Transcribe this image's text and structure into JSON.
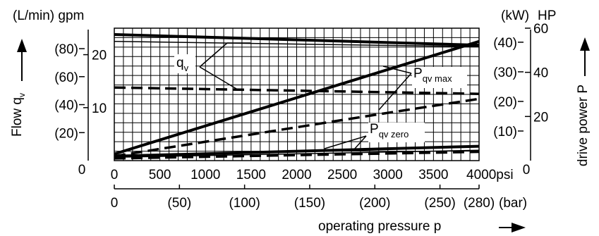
{
  "chart_data": {
    "type": "line",
    "x_psi": {
      "range": [
        0,
        4000
      ],
      "ticks": [
        "500",
        "1000",
        "1500",
        "2000",
        "2500",
        "3000",
        "3500",
        "4000psi"
      ],
      "origin_label": "0"
    },
    "x_bar": {
      "range": [
        0,
        280
      ],
      "ticks": [
        {
          "v": 0,
          "label": "0"
        },
        {
          "v": 50,
          "label": "(50)"
        },
        {
          "v": 100,
          "label": "(100)"
        },
        {
          "v": 150,
          "label": "(150)"
        },
        {
          "v": 200,
          "label": "(200)"
        },
        {
          "v": 250,
          "label": "(250)"
        },
        {
          "v": 280,
          "label": "(280)"
        }
      ],
      "unit": "(bar)"
    },
    "xlabel": {
      "text": "operating pressure p"
    },
    "left_axis": {
      "units": "(L/min) gpm",
      "title": "Flow q",
      "title_sub": "v",
      "gpm_range": [
        0,
        25
      ],
      "gpm_ticks": [
        {
          "v": 10,
          "label": "10"
        },
        {
          "v": 20,
          "label": "20"
        }
      ],
      "lpm_ticks": [
        {
          "v": 20,
          "label": "(20)"
        },
        {
          "v": 40,
          "label": "(40)"
        },
        {
          "v": 60,
          "label": "(60)"
        },
        {
          "v": 80,
          "label": "(80)"
        }
      ],
      "origin_label": "0"
    },
    "right_axis": {
      "units_kw": "(kW)",
      "units_hp": "HP",
      "title": "drive power P",
      "hp_range": [
        0,
        60
      ],
      "hp_ticks": [
        {
          "v": 20,
          "label": "20"
        },
        {
          "v": 40,
          "label": "40"
        },
        {
          "v": 60,
          "label": "60"
        }
      ],
      "kw_ticks": [
        {
          "v": 10,
          "label": "(10)"
        },
        {
          "v": 20,
          "label": "(20)"
        },
        {
          "v": 30,
          "label": "(30)"
        },
        {
          "v": 40,
          "label": "(40)"
        }
      ],
      "origin_label": "0"
    },
    "annotations": {
      "qv": {
        "main": "q",
        "sub": "v"
      },
      "pqv_max": {
        "main": "P",
        "sub": "qv max"
      },
      "pqv_zero": {
        "main": "P",
        "sub": "qv zero"
      }
    },
    "series": [
      {
        "key": "qv_upper_solid",
        "axis": "left",
        "style": "thick",
        "points": [
          [
            0,
            23.8
          ],
          [
            4000,
            21.8
          ]
        ]
      },
      {
        "key": "qv_upper_thin",
        "axis": "left",
        "style": "thin",
        "points": [
          [
            0,
            22.5
          ],
          [
            4000,
            21.5
          ]
        ]
      },
      {
        "key": "qv_lower_dashed",
        "axis": "left",
        "style": "dashed",
        "points": [
          [
            0,
            13.8
          ],
          [
            4000,
            12.6
          ]
        ]
      },
      {
        "key": "pmax_solid",
        "axis": "right",
        "style": "thick",
        "points": [
          [
            0,
            3
          ],
          [
            4000,
            54
          ]
        ]
      },
      {
        "key": "pmax_dashed",
        "axis": "right",
        "style": "dashed",
        "points": [
          [
            0,
            2
          ],
          [
            2900,
            21
          ],
          [
            4000,
            28
          ]
        ]
      },
      {
        "key": "pzero_solid",
        "axis": "right",
        "style": "thick",
        "points": [
          [
            0,
            2
          ],
          [
            4000,
            6.5
          ]
        ]
      },
      {
        "key": "pzero_thin",
        "axis": "right",
        "style": "thin",
        "points": [
          [
            0,
            1.5
          ],
          [
            4000,
            4.7
          ]
        ]
      },
      {
        "key": "pzero_dashed",
        "axis": "right",
        "style": "dashed",
        "points": [
          [
            0,
            1
          ],
          [
            4000,
            4
          ]
        ]
      }
    ]
  }
}
